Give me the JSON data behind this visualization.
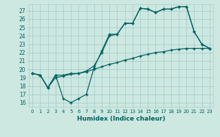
{
  "title": "",
  "xlabel": "Humidex (Indice chaleur)",
  "ylabel": "",
  "background_color": "#cce8e0",
  "grid_color": "#aacccc",
  "line_color": "#006060",
  "xlim": [
    -0.5,
    23.5
  ],
  "ylim": [
    15.5,
    27.8
  ],
  "yticks": [
    16,
    17,
    18,
    19,
    20,
    21,
    22,
    23,
    24,
    25,
    26,
    27
  ],
  "xticks": [
    0,
    1,
    2,
    3,
    4,
    5,
    6,
    7,
    8,
    9,
    10,
    11,
    12,
    13,
    14,
    15,
    16,
    17,
    18,
    19,
    20,
    21,
    22,
    23
  ],
  "line1_x": [
    0,
    1,
    2,
    3,
    4,
    5,
    6,
    7,
    8,
    9,
    10,
    11,
    12,
    13,
    14,
    15,
    16,
    17,
    18,
    19,
    20,
    21,
    22,
    23
  ],
  "line1_y": [
    19.5,
    19.3,
    17.8,
    19.3,
    16.5,
    16.0,
    16.5,
    17.0,
    20.2,
    22.2,
    24.2,
    24.2,
    25.5,
    25.5,
    27.3,
    27.2,
    26.8,
    27.2,
    27.2,
    27.5,
    27.5,
    24.5,
    23.0,
    22.5
  ],
  "line2_x": [
    0,
    1,
    2,
    3,
    4,
    5,
    6,
    7,
    8,
    9,
    10,
    11,
    12,
    13,
    14,
    15,
    16,
    17,
    18,
    19,
    20,
    21,
    22,
    23
  ],
  "line2_y": [
    19.5,
    19.3,
    17.8,
    19.3,
    19.3,
    19.5,
    19.5,
    19.8,
    20.4,
    22.0,
    24.0,
    24.2,
    25.5,
    25.5,
    27.3,
    27.2,
    26.8,
    27.2,
    27.2,
    27.5,
    27.5,
    24.5,
    23.0,
    22.5
  ],
  "line3_x": [
    0,
    1,
    2,
    3,
    4,
    5,
    6,
    7,
    8,
    9,
    10,
    11,
    12,
    13,
    14,
    15,
    16,
    17,
    18,
    19,
    20,
    21,
    22,
    23
  ],
  "line3_y": [
    19.5,
    19.3,
    17.8,
    19.0,
    19.2,
    19.4,
    19.5,
    19.7,
    20.0,
    20.3,
    20.6,
    20.8,
    21.1,
    21.3,
    21.6,
    21.8,
    22.0,
    22.1,
    22.3,
    22.4,
    22.5,
    22.5,
    22.5,
    22.5
  ]
}
